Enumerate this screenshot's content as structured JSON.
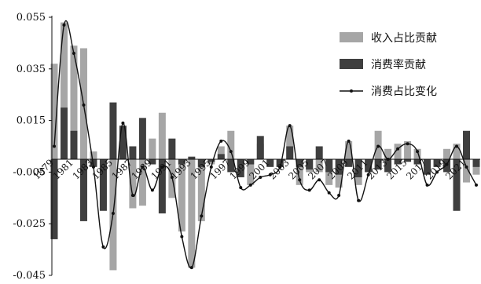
{
  "colors": {
    "income_share_bar": "#a6a6a6",
    "consumption_rate_bar": "#3f3f3f",
    "consumption_share_line": "#111111",
    "axis": "#111111"
  },
  "chart_data": {
    "type": "bar",
    "title": "",
    "xlabel": "",
    "ylabel": "",
    "ylim": [
      -0.045,
      0.055
    ],
    "y_ticks": [
      "0.055",
      "0.035",
      "0.015",
      "-0.005",
      "-0.025",
      "-0.045"
    ],
    "y_tick_values": [
      0.055,
      0.035,
      0.015,
      -0.005,
      -0.025,
      -0.045
    ],
    "grid": false,
    "legend_position": "top-right",
    "legend": [
      "收入占比贡献",
      "消费率贡献",
      "消费占比变化"
    ],
    "x_tick_labels": [
      {
        "label": "1979",
        "year": 1979
      },
      {
        "label": "1981",
        "year": 1981
      },
      {
        "label": "1983",
        "year": 1983
      },
      {
        "label": "1985",
        "year": 1985
      },
      {
        "label": "1987",
        "year": 1987
      },
      {
        "label": "1989",
        "year": 1989
      },
      {
        "label": "1991",
        "year": 1991
      },
      {
        "label": "1993",
        "year": 1993
      },
      {
        "label": "1995",
        "year": 1995
      },
      {
        "label": "1997",
        "year": 1997
      },
      {
        "label": "1999",
        "year": 1999
      },
      {
        "label": "2001",
        "year": 2001
      },
      {
        "label": "2003",
        "year": 2003
      },
      {
        "label": "2005",
        "year": 2005
      },
      {
        "label": "2007",
        "year": 2007
      },
      {
        "label": "2009",
        "year": 2009
      },
      {
        "label": "2011",
        "year": 2011
      },
      {
        "label": "2013",
        "year": 2013
      },
      {
        "label": "2015",
        "year": 2015
      },
      {
        "label": "2017",
        "year": 2017
      },
      {
        "label": "2019",
        "year": 2019
      },
      {
        "label": "2021",
        "year": 2021
      }
    ],
    "x": [
      1979,
      1980,
      1981,
      1982,
      1983,
      1984,
      1985,
      1986,
      1987,
      1988,
      1989,
      1990,
      1991,
      1992,
      1993,
      1994,
      1995,
      1996,
      1997,
      1998,
      1999,
      2000,
      2001,
      2002,
      2003,
      2004,
      2005,
      2006,
      2007,
      2008,
      2009,
      2010,
      2011,
      2012,
      2013,
      2014,
      2015,
      2016,
      2017,
      2018,
      2019,
      2020,
      2021,
      2022
    ],
    "series": [
      {
        "name": "收入占比贡献",
        "kind": "bar",
        "values": [
          0.037,
          0.053,
          0.044,
          0.043,
          0.003,
          -0.018,
          -0.043,
          0.007,
          -0.019,
          -0.018,
          0.008,
          0.018,
          -0.015,
          -0.028,
          -0.042,
          -0.024,
          -0.002,
          0.005,
          0.011,
          -0.005,
          -0.01,
          0.006,
          -0.002,
          -0.003,
          0.013,
          -0.01,
          -0.005,
          -0.005,
          -0.01,
          -0.011,
          0.007,
          -0.01,
          -0.005,
          0.011,
          0.004,
          0.006,
          0.007,
          0.004,
          -0.004,
          -0.003,
          0.004,
          0.006,
          -0.009,
          -0.006
        ]
      },
      {
        "name": "消费率贡献",
        "kind": "bar",
        "values": [
          -0.031,
          0.02,
          0.011,
          -0.024,
          -0.003,
          -0.02,
          0.022,
          0.013,
          0.005,
          0.016,
          -0.002,
          -0.021,
          0.008,
          -0.002,
          0.001,
          -0.003,
          -0.001,
          0.002,
          -0.005,
          -0.007,
          -0.002,
          0.009,
          -0.003,
          -0.003,
          0.005,
          -0.003,
          -0.004,
          0.005,
          -0.005,
          -0.006,
          -0.003,
          -0.007,
          -0.005,
          -0.004,
          -0.005,
          -0.002,
          -0.001,
          -0.002,
          -0.006,
          -0.003,
          -0.005,
          -0.02,
          0.011,
          -0.003
        ]
      },
      {
        "name": "消费占比变化",
        "kind": "line",
        "values": [
          0.005,
          0.052,
          0.041,
          0.021,
          -0.003,
          -0.034,
          -0.021,
          0.014,
          -0.014,
          -0.003,
          -0.012,
          -0.003,
          -0.007,
          -0.03,
          -0.042,
          -0.022,
          -0.003,
          0.007,
          0.003,
          -0.011,
          -0.01,
          -0.007,
          -0.006,
          -0.003,
          0.013,
          -0.008,
          -0.012,
          -0.008,
          -0.013,
          -0.014,
          0.007,
          -0.016,
          -0.006,
          0.005,
          0.0,
          0.004,
          0.006,
          0.003,
          -0.01,
          -0.005,
          -0.002,
          0.005,
          -0.003,
          -0.01
        ]
      }
    ]
  }
}
